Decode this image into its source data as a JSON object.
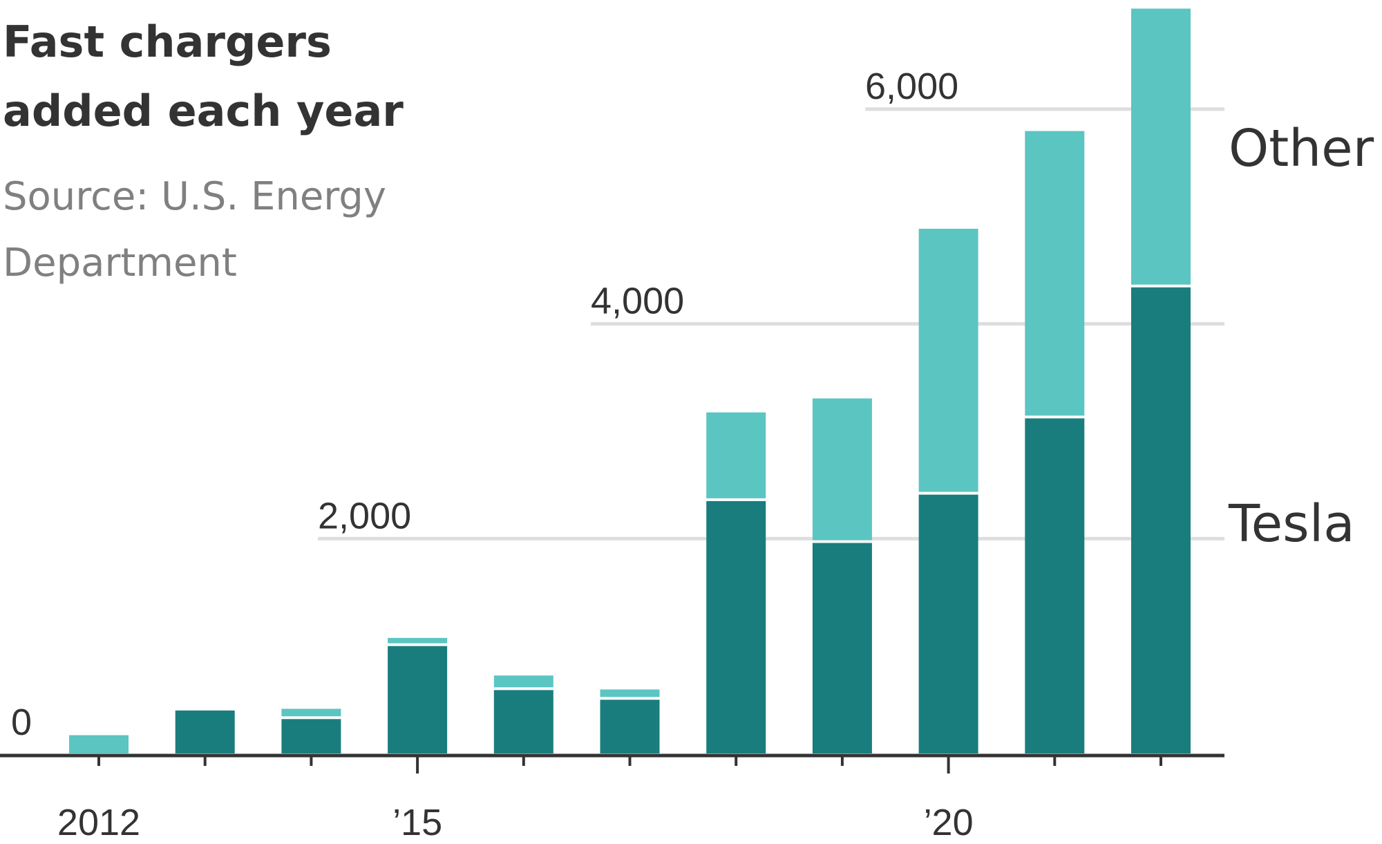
{
  "chart_data": {
    "type": "bar",
    "stacked": true,
    "title": "Fast chargers added each year",
    "title_lines": [
      "Fast chargers",
      "added each year"
    ],
    "source_lines": [
      "Source: U.S. Energy",
      "Department"
    ],
    "categories": [
      "2012",
      "2013",
      "2014",
      "2015",
      "2016",
      "2017",
      "2018",
      "2019",
      "2020",
      "2021",
      "2022"
    ],
    "x_tick_labels": [
      {
        "category": "2012",
        "label": "2012"
      },
      {
        "category": "2015",
        "label": "’15"
      },
      {
        "category": "2020",
        "label": "’20"
      }
    ],
    "series": [
      {
        "name": "Tesla",
        "color": "#1a7d7d",
        "values": [
          0,
          400,
          320,
          1000,
          590,
          500,
          2350,
          1960,
          2410,
          3120,
          4340
        ]
      },
      {
        "name": "Other",
        "color": "#5bc5c2",
        "values": [
          170,
          0,
          70,
          50,
          110,
          70,
          800,
          1320,
          2450,
          2650,
          2570
        ]
      }
    ],
    "y_ticks": [
      {
        "value": 0,
        "label": "0"
      },
      {
        "value": 2000,
        "label": "2,000"
      },
      {
        "value": 4000,
        "label": "4,000"
      },
      {
        "value": 6000,
        "label": "6,000"
      }
    ],
    "ylim": [
      0,
      6900
    ],
    "grid": true,
    "legend": "right"
  }
}
